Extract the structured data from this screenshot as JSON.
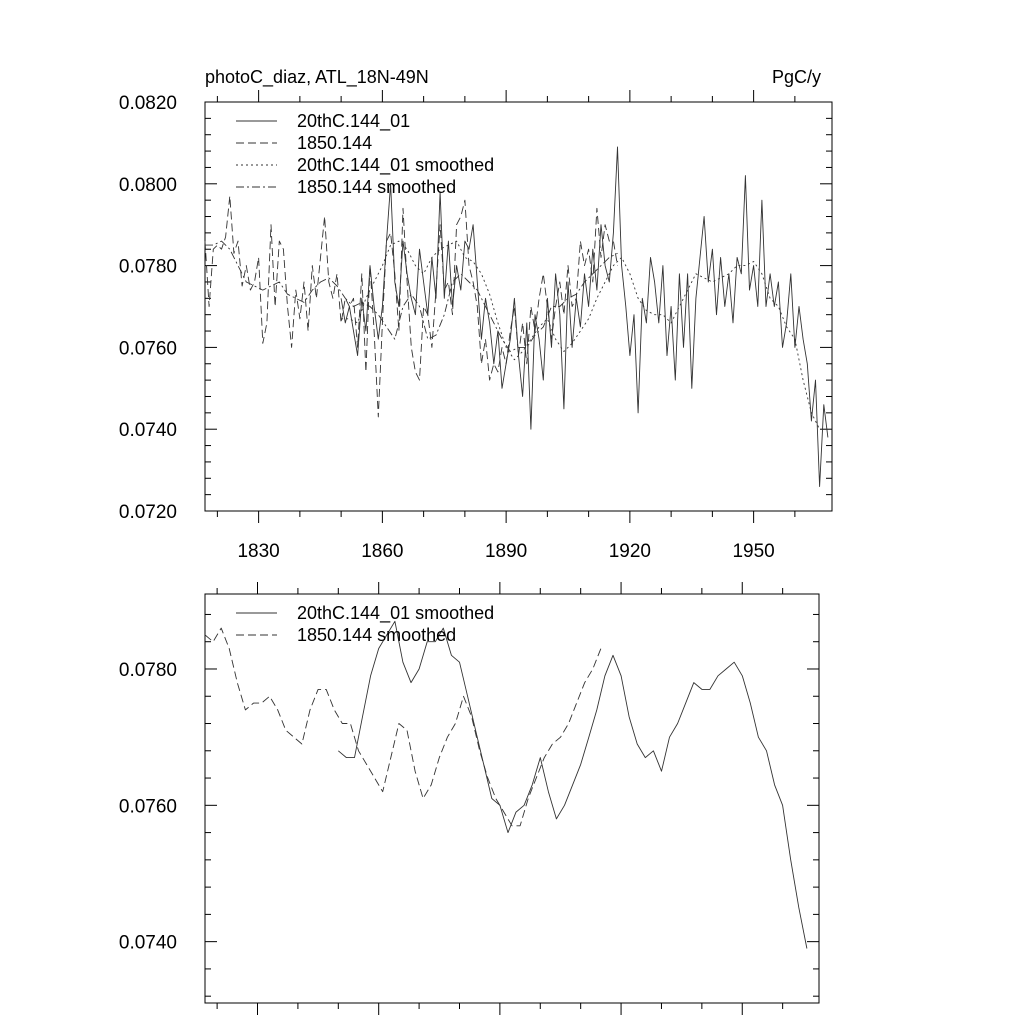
{
  "chart_data": [
    {
      "type": "line",
      "title_left": "photoC_diaz, ATL_18N-49N",
      "title_right": "PgC/y",
      "xlabel": "",
      "ylabel": "",
      "xlim": [
        1817,
        1969
      ],
      "ylim": [
        0.072,
        0.082
      ],
      "x_ticks": [
        1830,
        1860,
        1890,
        1920,
        1950
      ],
      "x_tick_labels": [
        "1830",
        "1860",
        "1890",
        "1920",
        "1950"
      ],
      "y_ticks": [
        0.072,
        0.074,
        0.076,
        0.078,
        0.08,
        0.082
      ],
      "y_tick_labels": [
        "0.0720",
        "0.0740",
        "0.0760",
        "0.0780",
        "0.0800",
        "0.0820"
      ],
      "grid": false,
      "legend_position": "top-left",
      "series": [
        {
          "name": "20thC.144_01",
          "style": "solid",
          "x": [
            1850,
            1851,
            1852,
            1853,
            1854,
            1855,
            1856,
            1857,
            1858,
            1859,
            1860,
            1861,
            1862,
            1863,
            1864,
            1865,
            1866,
            1867,
            1868,
            1869,
            1870,
            1871,
            1872,
            1873,
            1874,
            1875,
            1876,
            1877,
            1878,
            1879,
            1880,
            1881,
            1882,
            1883,
            1884,
            1885,
            1886,
            1887,
            1888,
            1889,
            1890,
            1891,
            1892,
            1893,
            1894,
            1895,
            1896,
            1897,
            1898,
            1899,
            1900,
            1901,
            1902,
            1903,
            1904,
            1905,
            1906,
            1907,
            1908,
            1909,
            1910,
            1911,
            1912,
            1913,
            1914,
            1915,
            1916,
            1917,
            1918,
            1919,
            1920,
            1921,
            1922,
            1923,
            1924,
            1925,
            1926,
            1927,
            1928,
            1929,
            1930,
            1931,
            1932,
            1933,
            1934,
            1935,
            1936,
            1937,
            1938,
            1939,
            1940,
            1941,
            1942,
            1943,
            1944,
            1945,
            1946,
            1947,
            1948,
            1949,
            1950,
            1951,
            1952,
            1953,
            1954,
            1955,
            1956,
            1957,
            1958,
            1959,
            1960,
            1961,
            1962,
            1963,
            1964,
            1965,
            1966,
            1967,
            1968
          ],
          "values": [
            0.0772,
            0.0766,
            0.077,
            0.0764,
            0.0758,
            0.0772,
            0.0764,
            0.078,
            0.077,
            0.0762,
            0.077,
            0.0786,
            0.08,
            0.0776,
            0.077,
            0.0786,
            0.0778,
            0.0772,
            0.0768,
            0.0784,
            0.0776,
            0.0768,
            0.0782,
            0.0772,
            0.0798,
            0.0772,
            0.0786,
            0.077,
            0.078,
            0.0774,
            0.0786,
            0.0784,
            0.079,
            0.0776,
            0.0762,
            0.0772,
            0.0766,
            0.0756,
            0.0764,
            0.075,
            0.0756,
            0.0762,
            0.0772,
            0.0758,
            0.0748,
            0.0766,
            0.074,
            0.0768,
            0.0762,
            0.0752,
            0.0772,
            0.076,
            0.0778,
            0.0768,
            0.0745,
            0.0776,
            0.076,
            0.0772,
            0.0765,
            0.0778,
            0.077,
            0.0784,
            0.0774,
            0.079,
            0.078,
            0.0776,
            0.0788,
            0.0809,
            0.078,
            0.077,
            0.0758,
            0.0768,
            0.0744,
            0.0772,
            0.0766,
            0.0782,
            0.0776,
            0.0766,
            0.078,
            0.0758,
            0.077,
            0.0752,
            0.0778,
            0.076,
            0.0778,
            0.075,
            0.0772,
            0.0782,
            0.0792,
            0.0776,
            0.0784,
            0.0768,
            0.0782,
            0.077,
            0.0778,
            0.0766,
            0.0782,
            0.0778,
            0.0802,
            0.0774,
            0.078,
            0.077,
            0.0796,
            0.077,
            0.0778,
            0.077,
            0.0776,
            0.076,
            0.0766,
            0.0778,
            0.076,
            0.077,
            0.0762,
            0.0756,
            0.0742,
            0.0752,
            0.0726,
            0.0746,
            0.0738
          ]
        },
        {
          "name": "1850.144",
          "style": "dashed",
          "x": [
            1817,
            1818,
            1819,
            1820,
            1821,
            1822,
            1823,
            1824,
            1825,
            1826,
            1827,
            1828,
            1829,
            1830,
            1831,
            1832,
            1833,
            1834,
            1835,
            1836,
            1837,
            1838,
            1839,
            1840,
            1841,
            1842,
            1843,
            1844,
            1845,
            1846,
            1847,
            1848,
            1849,
            1850,
            1851,
            1852,
            1853,
            1854,
            1855,
            1856,
            1857,
            1858,
            1859,
            1860,
            1861,
            1862,
            1863,
            1864,
            1865,
            1866,
            1867,
            1868,
            1869,
            1870,
            1871,
            1872,
            1873,
            1874,
            1875,
            1876,
            1877,
            1878,
            1879,
            1880,
            1881,
            1882,
            1883,
            1884,
            1885,
            1886,
            1887,
            1888,
            1889,
            1890,
            1891,
            1892,
            1893,
            1894,
            1895,
            1896,
            1897,
            1898,
            1899,
            1900,
            1901,
            1902,
            1903,
            1904,
            1905,
            1906,
            1907,
            1908,
            1909,
            1910,
            1911,
            1912,
            1913,
            1914,
            1915,
            1916,
            1917
          ],
          "values": [
            0.0786,
            0.077,
            0.0784,
            0.0785,
            0.0784,
            0.0787,
            0.0797,
            0.0783,
            0.0786,
            0.0775,
            0.078,
            0.0774,
            0.0776,
            0.0782,
            0.0761,
            0.0766,
            0.079,
            0.077,
            0.0786,
            0.0784,
            0.077,
            0.076,
            0.0774,
            0.0767,
            0.0776,
            0.0764,
            0.078,
            0.0772,
            0.0782,
            0.0792,
            0.0776,
            0.0772,
            0.0778,
            0.0766,
            0.0772,
            0.077,
            0.0772,
            0.076,
            0.0778,
            0.0754,
            0.078,
            0.0764,
            0.0743,
            0.0766,
            0.0786,
            0.0788,
            0.0778,
            0.0764,
            0.0794,
            0.0776,
            0.076,
            0.0754,
            0.0752,
            0.077,
            0.0768,
            0.076,
            0.0774,
            0.079,
            0.0774,
            0.0776,
            0.0768,
            0.079,
            0.0792,
            0.0796,
            0.078,
            0.0776,
            0.077,
            0.0756,
            0.0762,
            0.0752,
            0.0756,
            0.0754,
            0.076,
            0.0756,
            0.0764,
            0.077,
            0.0758,
            0.0766,
            0.0756,
            0.077,
            0.0764,
            0.0772,
            0.0778,
            0.077,
            0.0762,
            0.077,
            0.0776,
            0.0768,
            0.078,
            0.077,
            0.0772,
            0.0786,
            0.078,
            0.0784,
            0.0776,
            0.0794,
            0.0782,
            0.079,
            0.0786,
            0.0786,
            0.078
          ]
        },
        {
          "name": "20thC.144_01 smoothed",
          "style": "dotted",
          "x": [
            1850,
            1852,
            1854,
            1856,
            1858,
            1860,
            1862,
            1864,
            1866,
            1868,
            1870,
            1872,
            1874,
            1876,
            1878,
            1880,
            1882,
            1884,
            1886,
            1888,
            1890,
            1892,
            1894,
            1896,
            1898,
            1900,
            1902,
            1904,
            1906,
            1908,
            1910,
            1912,
            1914,
            1916,
            1918,
            1920,
            1922,
            1924,
            1926,
            1928,
            1930,
            1932,
            1934,
            1936,
            1938,
            1940,
            1942,
            1944,
            1946,
            1948,
            1950,
            1952,
            1954,
            1956,
            1958,
            1960,
            1962,
            1964,
            1966
          ],
          "values": [
            0.0767,
            0.0767,
            0.0766,
            0.0772,
            0.0776,
            0.078,
            0.0785,
            0.0786,
            0.0784,
            0.078,
            0.0778,
            0.0782,
            0.0784,
            0.0785,
            0.0786,
            0.0782,
            0.0781,
            0.0778,
            0.0773,
            0.0766,
            0.076,
            0.0757,
            0.0759,
            0.0762,
            0.0765,
            0.0767,
            0.0762,
            0.0759,
            0.0761,
            0.0764,
            0.0767,
            0.0772,
            0.0776,
            0.078,
            0.0782,
            0.0778,
            0.0772,
            0.0769,
            0.0768,
            0.0768,
            0.0766,
            0.077,
            0.0774,
            0.0778,
            0.0777,
            0.0776,
            0.0777,
            0.0778,
            0.078,
            0.078,
            0.0781,
            0.0778,
            0.0772,
            0.077,
            0.0765,
            0.0762,
            0.0752,
            0.0744,
            0.074
          ]
        },
        {
          "name": "1850.144 smoothed",
          "style": "dashdot",
          "x": [
            1817,
            1819,
            1821,
            1823,
            1825,
            1827,
            1829,
            1831,
            1833,
            1835,
            1837,
            1839,
            1841,
            1843,
            1845,
            1847,
            1849,
            1851,
            1853,
            1855,
            1857,
            1859,
            1861,
            1863,
            1865,
            1867,
            1869,
            1871,
            1873,
            1875,
            1877,
            1879,
            1881,
            1883,
            1885,
            1887,
            1889,
            1891,
            1893,
            1895,
            1897,
            1899,
            1901,
            1903,
            1905,
            1907,
            1909,
            1911,
            1913,
            1915,
            1917
          ],
          "values": [
            0.0785,
            0.0785,
            0.0786,
            0.0784,
            0.078,
            0.0776,
            0.0775,
            0.0774,
            0.0775,
            0.0776,
            0.0773,
            0.0772,
            0.0771,
            0.0774,
            0.0776,
            0.0777,
            0.0775,
            0.0772,
            0.077,
            0.0771,
            0.077,
            0.0768,
            0.0765,
            0.0762,
            0.077,
            0.0773,
            0.077,
            0.0762,
            0.0763,
            0.0768,
            0.0776,
            0.0778,
            0.0776,
            0.0774,
            0.077,
            0.0766,
            0.0762,
            0.0759,
            0.076,
            0.076,
            0.0763,
            0.0765,
            0.077,
            0.077,
            0.0772,
            0.0773,
            0.0776,
            0.0778,
            0.078,
            0.0782,
            0.0783
          ]
        }
      ]
    },
    {
      "type": "line",
      "title_left": "",
      "title_right": "",
      "xlabel": "",
      "ylabel": "",
      "xlim": [
        1817,
        1969
      ],
      "ylim": [
        0.0731,
        0.0791
      ],
      "x_ticks": [
        1830,
        1860,
        1890,
        1920,
        1950
      ],
      "x_tick_labels": [],
      "y_ticks": [
        0.074,
        0.076,
        0.078
      ],
      "y_tick_labels": [
        "0.0740",
        "0.0760",
        "0.0780"
      ],
      "grid": false,
      "legend_position": "top-left",
      "series": [
        {
          "name": "20thC.144_01 smoothed",
          "style": "solid",
          "x": [
            1850,
            1852,
            1854,
            1856,
            1858,
            1860,
            1862,
            1864,
            1866,
            1868,
            1870,
            1872,
            1874,
            1876,
            1878,
            1880,
            1882,
            1884,
            1886,
            1888,
            1890,
            1892,
            1894,
            1896,
            1898,
            1900,
            1902,
            1904,
            1906,
            1908,
            1910,
            1912,
            1914,
            1916,
            1918,
            1920,
            1922,
            1924,
            1926,
            1928,
            1930,
            1932,
            1934,
            1936,
            1938,
            1940,
            1942,
            1944,
            1946,
            1948,
            1950,
            1952,
            1954,
            1956,
            1958,
            1960,
            1962,
            1964,
            1966
          ],
          "values": [
            0.0768,
            0.0767,
            0.0767,
            0.0773,
            0.0779,
            0.0783,
            0.0785,
            0.0787,
            0.0781,
            0.0778,
            0.078,
            0.0784,
            0.0784,
            0.0786,
            0.0782,
            0.0781,
            0.0776,
            0.0771,
            0.0766,
            0.0761,
            0.076,
            0.0756,
            0.0759,
            0.076,
            0.0763,
            0.0767,
            0.0762,
            0.0758,
            0.076,
            0.0763,
            0.0766,
            0.077,
            0.0774,
            0.0779,
            0.0782,
            0.0779,
            0.0773,
            0.0769,
            0.0767,
            0.0768,
            0.0765,
            0.077,
            0.0772,
            0.0775,
            0.0778,
            0.0777,
            0.0777,
            0.0779,
            0.078,
            0.0781,
            0.0779,
            0.0775,
            0.077,
            0.0768,
            0.0763,
            0.076,
            0.0752,
            0.0745,
            0.0739
          ]
        },
        {
          "name": "1850.144 smoothed",
          "style": "dashed",
          "x": [
            1817,
            1819,
            1821,
            1823,
            1825,
            1827,
            1829,
            1831,
            1833,
            1835,
            1837,
            1839,
            1841,
            1843,
            1845,
            1847,
            1849,
            1851,
            1853,
            1855,
            1857,
            1859,
            1861,
            1863,
            1865,
            1867,
            1869,
            1871,
            1873,
            1875,
            1877,
            1879,
            1881,
            1883,
            1885,
            1887,
            1889,
            1891,
            1893,
            1895,
            1897,
            1899,
            1901,
            1903,
            1905,
            1907,
            1909,
            1911,
            1913,
            1915
          ],
          "values": [
            0.0785,
            0.0784,
            0.0786,
            0.0783,
            0.0778,
            0.0774,
            0.0775,
            0.0775,
            0.0776,
            0.0774,
            0.0771,
            0.077,
            0.0769,
            0.0774,
            0.0777,
            0.0777,
            0.0774,
            0.0772,
            0.0772,
            0.0768,
            0.0766,
            0.0764,
            0.0762,
            0.0767,
            0.0772,
            0.0771,
            0.0765,
            0.0761,
            0.0763,
            0.0767,
            0.077,
            0.0772,
            0.0776,
            0.0773,
            0.0768,
            0.0764,
            0.0761,
            0.0759,
            0.0757,
            0.0757,
            0.0761,
            0.0764,
            0.0767,
            0.0769,
            0.077,
            0.0772,
            0.0775,
            0.0778,
            0.078,
            0.0783
          ]
        }
      ]
    }
  ]
}
